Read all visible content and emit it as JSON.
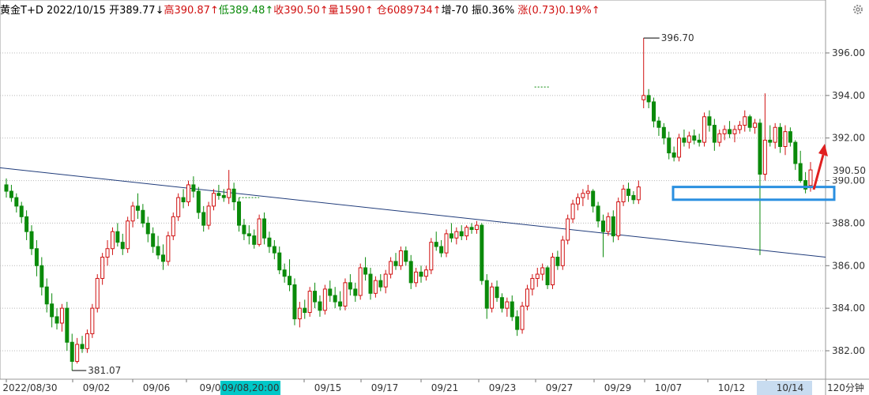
{
  "header": {
    "symbol": "黄金T+D",
    "date": "2022/10/15",
    "open": "开389.77↓",
    "high": "高390.87↑",
    "low": "低389.48↑",
    "close": "收390.50↑",
    "volume": "量1590↑",
    "position": "仓6089734↑",
    "increase": "增-70",
    "amplitude": "振0.36%",
    "change": "涨(0.73)0.19%↑"
  },
  "period_label": "120分钟",
  "colors": {
    "up": "#d01010",
    "down": "#0a8a0a",
    "grid": "#b8b8b8",
    "trendline": "#1f3b7a",
    "zone": "#2a8fe0",
    "arrow": "#e02020",
    "price_tag": "#d01010"
  },
  "chart_data": {
    "type": "candlestick",
    "ylim": [
      381,
      398
    ],
    "yticks": [
      "382.00",
      "384.00",
      "386.00",
      "388.00",
      "390.00",
      "392.00",
      "394.00",
      "396.00"
    ],
    "xticks": [
      "2022/08/30",
      "09/02",
      "09/06",
      "09/0",
      "09/15",
      "09/17",
      "09/21",
      "09/23",
      "09/27",
      "09/29",
      "10/07",
      "10/12",
      "10/14"
    ],
    "cursor_label": "09/08,20:00",
    "annotations": {
      "max": "396.70",
      "min": "381.07",
      "last": "390.50"
    },
    "max_value": 396.7,
    "min_value": 381.07,
    "last_value": 390.5,
    "zone": [
      389.1,
      389.7
    ],
    "trendline": [
      390.6,
      386.4
    ],
    "candles": [
      [
        389.8,
        390.1,
        389.2,
        389.5
      ],
      [
        389.5,
        389.8,
        389.0,
        389.2
      ],
      [
        389.2,
        389.4,
        388.5,
        388.8
      ],
      [
        388.8,
        389.0,
        388.0,
        388.3
      ],
      [
        388.3,
        388.6,
        387.2,
        387.6
      ],
      [
        387.6,
        387.9,
        386.5,
        386.8
      ],
      [
        386.8,
        387.2,
        385.5,
        386.0
      ],
      [
        386.0,
        386.4,
        384.6,
        385.0
      ],
      [
        385.0,
        385.4,
        383.8,
        384.2
      ],
      [
        384.2,
        384.7,
        383.1,
        383.6
      ],
      [
        383.6,
        384.0,
        383.0,
        383.3
      ],
      [
        383.3,
        384.2,
        382.9,
        384.0
      ],
      [
        384.0,
        384.3,
        382.0,
        382.4
      ],
      [
        382.4,
        382.8,
        381.07,
        381.5
      ],
      [
        381.5,
        382.6,
        381.4,
        382.3
      ],
      [
        382.3,
        382.7,
        381.9,
        382.1
      ],
      [
        382.1,
        383.0,
        381.9,
        382.8
      ],
      [
        382.8,
        384.2,
        382.6,
        384.0
      ],
      [
        384.0,
        385.6,
        383.8,
        385.4
      ],
      [
        385.4,
        386.6,
        385.1,
        386.4
      ],
      [
        386.4,
        387.2,
        386.0,
        386.8
      ],
      [
        386.8,
        387.8,
        386.5,
        387.6
      ],
      [
        387.6,
        388.0,
        386.9,
        387.1
      ],
      [
        387.1,
        387.5,
        386.5,
        386.8
      ],
      [
        386.8,
        388.3,
        386.6,
        388.1
      ],
      [
        388.1,
        389.0,
        387.8,
        388.8
      ],
      [
        388.8,
        389.4,
        388.2,
        388.6
      ],
      [
        388.6,
        388.9,
        387.8,
        388.0
      ],
      [
        388.0,
        388.3,
        387.1,
        387.5
      ],
      [
        387.5,
        387.8,
        386.6,
        386.9
      ],
      [
        386.9,
        387.4,
        386.3,
        386.5
      ],
      [
        386.5,
        387.0,
        385.8,
        386.2
      ],
      [
        386.2,
        387.6,
        386.0,
        387.4
      ],
      [
        387.4,
        388.5,
        387.2,
        388.3
      ],
      [
        388.3,
        389.4,
        388.1,
        389.2
      ],
      [
        389.2,
        389.6,
        388.7,
        389.0
      ],
      [
        389.0,
        390.0,
        388.8,
        389.8
      ],
      [
        389.8,
        390.2,
        389.2,
        389.5
      ],
      [
        389.5,
        389.7,
        388.2,
        388.5
      ],
      [
        388.5,
        388.8,
        387.6,
        387.9
      ],
      [
        387.9,
        389.0,
        387.7,
        388.8
      ],
      [
        388.8,
        389.6,
        388.6,
        389.4
      ],
      [
        389.4,
        389.8,
        389.1,
        389.3
      ],
      [
        389.3,
        389.6,
        389.0,
        389.2
      ],
      [
        389.2,
        390.5,
        388.9,
        389.6
      ],
      [
        389.6,
        389.9,
        388.6,
        389.0
      ],
      [
        389.0,
        389.2,
        387.6,
        387.9
      ],
      [
        387.9,
        388.2,
        387.2,
        387.5
      ],
      [
        387.5,
        387.9,
        387.0,
        387.4
      ],
      [
        387.4,
        387.7,
        386.8,
        387.0
      ],
      [
        387.0,
        388.4,
        386.9,
        388.2
      ],
      [
        388.2,
        388.5,
        387.0,
        387.3
      ],
      [
        387.3,
        387.6,
        386.6,
        386.9
      ],
      [
        386.9,
        387.2,
        386.3,
        386.6
      ],
      [
        386.6,
        386.9,
        385.6,
        385.8
      ],
      [
        385.8,
        386.1,
        385.2,
        385.5
      ],
      [
        385.5,
        386.3,
        384.8,
        385.1
      ],
      [
        385.1,
        385.4,
        383.2,
        383.5
      ],
      [
        383.5,
        384.3,
        383.1,
        384.0
      ],
      [
        384.0,
        384.4,
        383.5,
        383.8
      ],
      [
        383.8,
        385.0,
        383.6,
        384.8
      ],
      [
        384.8,
        385.2,
        384.0,
        384.3
      ],
      [
        384.3,
        384.6,
        383.6,
        383.9
      ],
      [
        383.9,
        385.1,
        383.7,
        384.9
      ],
      [
        384.9,
        385.3,
        384.3,
        384.6
      ],
      [
        384.6,
        385.0,
        384.0,
        384.3
      ],
      [
        384.3,
        384.8,
        383.9,
        384.1
      ],
      [
        384.1,
        385.4,
        383.9,
        385.2
      ],
      [
        385.2,
        385.6,
        384.6,
        384.9
      ],
      [
        384.9,
        385.2,
        384.3,
        384.6
      ],
      [
        384.6,
        386.1,
        384.4,
        385.9
      ],
      [
        385.9,
        386.4,
        385.3,
        385.6
      ],
      [
        385.6,
        385.9,
        384.4,
        384.7
      ],
      [
        384.7,
        385.5,
        384.5,
        385.3
      ],
      [
        385.3,
        385.6,
        384.8,
        385.0
      ],
      [
        385.0,
        385.8,
        384.7,
        385.6
      ],
      [
        385.6,
        386.4,
        385.4,
        386.2
      ],
      [
        386.2,
        386.6,
        385.8,
        386.0
      ],
      [
        386.0,
        386.9,
        385.8,
        386.7
      ],
      [
        386.7,
        386.9,
        386.0,
        386.2
      ],
      [
        386.2,
        386.5,
        384.9,
        385.2
      ],
      [
        385.2,
        385.9,
        385.0,
        385.7
      ],
      [
        385.7,
        386.0,
        385.2,
        385.5
      ],
      [
        385.5,
        386.0,
        385.3,
        385.8
      ],
      [
        385.8,
        387.3,
        385.6,
        387.1
      ],
      [
        387.1,
        387.6,
        386.7,
        386.9
      ],
      [
        386.9,
        387.2,
        386.4,
        386.6
      ],
      [
        386.6,
        387.7,
        386.4,
        387.5
      ],
      [
        387.5,
        388.0,
        387.1,
        387.3
      ],
      [
        387.3,
        387.8,
        387.0,
        387.6
      ],
      [
        387.6,
        387.9,
        387.2,
        387.4
      ],
      [
        387.4,
        387.9,
        387.2,
        387.8
      ],
      [
        387.8,
        388.0,
        387.5,
        387.7
      ],
      [
        387.7,
        388.1,
        387.5,
        387.9
      ],
      [
        387.9,
        388.0,
        385.1,
        385.3
      ],
      [
        385.3,
        385.6,
        383.5,
        384.0
      ],
      [
        384.0,
        385.2,
        383.8,
        385.0
      ],
      [
        385.0,
        385.3,
        384.3,
        384.5
      ],
      [
        384.5,
        384.7,
        383.8,
        384.0
      ],
      [
        384.0,
        384.5,
        383.6,
        384.3
      ],
      [
        384.3,
        384.6,
        383.4,
        383.6
      ],
      [
        383.6,
        383.9,
        382.7,
        383.0
      ],
      [
        383.0,
        384.3,
        382.8,
        384.1
      ],
      [
        384.1,
        385.1,
        383.9,
        384.9
      ],
      [
        384.9,
        385.6,
        384.6,
        385.4
      ],
      [
        385.4,
        385.9,
        385.0,
        385.6
      ],
      [
        385.6,
        386.1,
        385.3,
        385.9
      ],
      [
        385.9,
        386.0,
        384.9,
        385.1
      ],
      [
        385.1,
        386.6,
        384.9,
        386.4
      ],
      [
        386.4,
        386.7,
        385.8,
        386.0
      ],
      [
        386.0,
        387.4,
        385.8,
        387.2
      ],
      [
        387.2,
        388.4,
        387.0,
        388.2
      ],
      [
        388.2,
        389.1,
        388.0,
        388.9
      ],
      [
        388.9,
        389.4,
        388.6,
        389.2
      ],
      [
        389.2,
        389.6,
        388.8,
        389.4
      ],
      [
        389.4,
        389.8,
        389.1,
        389.5
      ],
      [
        389.5,
        389.6,
        388.5,
        388.8
      ],
      [
        388.8,
        389.0,
        387.8,
        388.1
      ],
      [
        388.1,
        388.4,
        386.4,
        387.6
      ],
      [
        387.6,
        388.5,
        387.4,
        388.3
      ],
      [
        388.3,
        388.6,
        387.1,
        387.4
      ],
      [
        387.4,
        389.2,
        387.2,
        389.0
      ],
      [
        389.0,
        389.8,
        388.8,
        389.6
      ],
      [
        389.6,
        389.9,
        389.0,
        389.3
      ],
      [
        389.3,
        389.5,
        388.9,
        389.1
      ],
      [
        389.1,
        390.0,
        388.9,
        389.7
      ],
      [
        393.8,
        396.7,
        393.4,
        394.0
      ],
      [
        394.0,
        394.3,
        393.4,
        393.7
      ],
      [
        393.7,
        393.9,
        392.5,
        392.8
      ],
      [
        392.8,
        393.0,
        392.1,
        392.5
      ],
      [
        392.5,
        392.7,
        391.7,
        392.0
      ],
      [
        392.0,
        392.3,
        391.0,
        391.3
      ],
      [
        391.3,
        391.6,
        390.9,
        391.1
      ],
      [
        391.1,
        392.2,
        390.9,
        392.0
      ],
      [
        392.0,
        392.4,
        391.6,
        391.8
      ],
      [
        391.8,
        392.3,
        391.5,
        392.1
      ],
      [
        392.1,
        392.4,
        391.7,
        391.9
      ],
      [
        391.9,
        392.2,
        391.6,
        391.8
      ],
      [
        391.8,
        393.2,
        391.6,
        393.0
      ],
      [
        393.0,
        393.3,
        392.3,
        392.6
      ],
      [
        392.6,
        392.9,
        391.4,
        391.8
      ],
      [
        391.8,
        392.4,
        391.6,
        392.2
      ],
      [
        392.2,
        392.6,
        391.9,
        392.4
      ],
      [
        392.4,
        392.8,
        392.0,
        392.2
      ],
      [
        392.2,
        392.6,
        391.8,
        392.4
      ],
      [
        392.4,
        392.8,
        392.2,
        392.6
      ],
      [
        392.6,
        393.3,
        392.3,
        393.0
      ],
      [
        393.0,
        393.1,
        392.3,
        392.5
      ],
      [
        392.5,
        392.9,
        392.2,
        392.7
      ],
      [
        392.7,
        392.9,
        386.5,
        390.3
      ],
      [
        390.3,
        394.1,
        390.0,
        391.9
      ],
      [
        391.9,
        392.6,
        391.6,
        391.8
      ],
      [
        391.8,
        392.7,
        391.5,
        392.5
      ],
      [
        392.5,
        392.7,
        391.3,
        391.6
      ],
      [
        391.6,
        392.6,
        391.2,
        392.3
      ],
      [
        392.3,
        392.5,
        391.6,
        391.8
      ],
      [
        391.8,
        391.9,
        390.5,
        390.8
      ],
      [
        390.8,
        391.4,
        389.9,
        390.0
      ],
      [
        390.0,
        390.4,
        389.4,
        389.6
      ],
      [
        389.77,
        390.87,
        389.48,
        390.5
      ]
    ]
  }
}
